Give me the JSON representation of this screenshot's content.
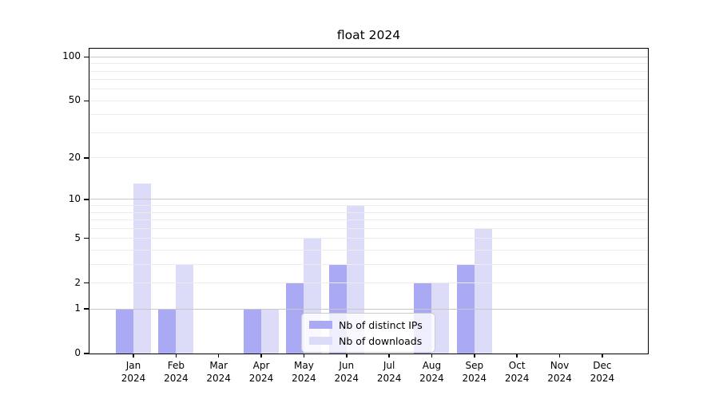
{
  "title": "float 2024",
  "colors": {
    "distinct_ips": "#a9a9f4",
    "downloads": "#dcdcf8",
    "grid_major": "#c8c8c8",
    "grid_minor": "#ececec",
    "spine": "#000000",
    "background": "#ffffff",
    "text": "#000000",
    "legend_border": "#cccccc",
    "legend_background": "rgba(255,255,255,0.8)"
  },
  "chart_data": {
    "type": "bar",
    "title": "float 2024",
    "categories": [
      "Jan 2024",
      "Feb 2024",
      "Mar 2024",
      "Apr 2024",
      "May 2024",
      "Jun 2024",
      "Jul 2024",
      "Aug 2024",
      "Sep 2024",
      "Oct 2024",
      "Nov 2024",
      "Dec 2024"
    ],
    "month_labels_line1": [
      "Jan",
      "Feb",
      "Mar",
      "Apr",
      "May",
      "Jun",
      "Jul",
      "Aug",
      "Sep",
      "Oct",
      "Nov",
      "Dec"
    ],
    "month_labels_line2": "2024",
    "series": [
      {
        "name": "Nb of distinct IPs",
        "color_key": "distinct_ips",
        "values": [
          1,
          1,
          0,
          1,
          2,
          3,
          0,
          2,
          3,
          0,
          0,
          0
        ]
      },
      {
        "name": "Nb of downloads",
        "color_key": "downloads",
        "values": [
          13,
          3,
          0,
          1,
          5,
          9,
          0,
          2,
          6,
          0,
          0,
          0
        ]
      }
    ],
    "yscale": "log1p",
    "ytick_values": [
      0,
      1,
      2,
      5,
      10,
      20,
      50,
      100
    ],
    "major_gridline_values": [
      1,
      10,
      100
    ],
    "minor_gridline_values": [
      2,
      3,
      4,
      5,
      6,
      7,
      8,
      9,
      20,
      30,
      40,
      50,
      60,
      70,
      80,
      90
    ],
    "ylim": [
      0,
      113
    ],
    "xlabel": "",
    "ylabel": "",
    "grid": "horizontal",
    "legend_position": "lower center"
  }
}
